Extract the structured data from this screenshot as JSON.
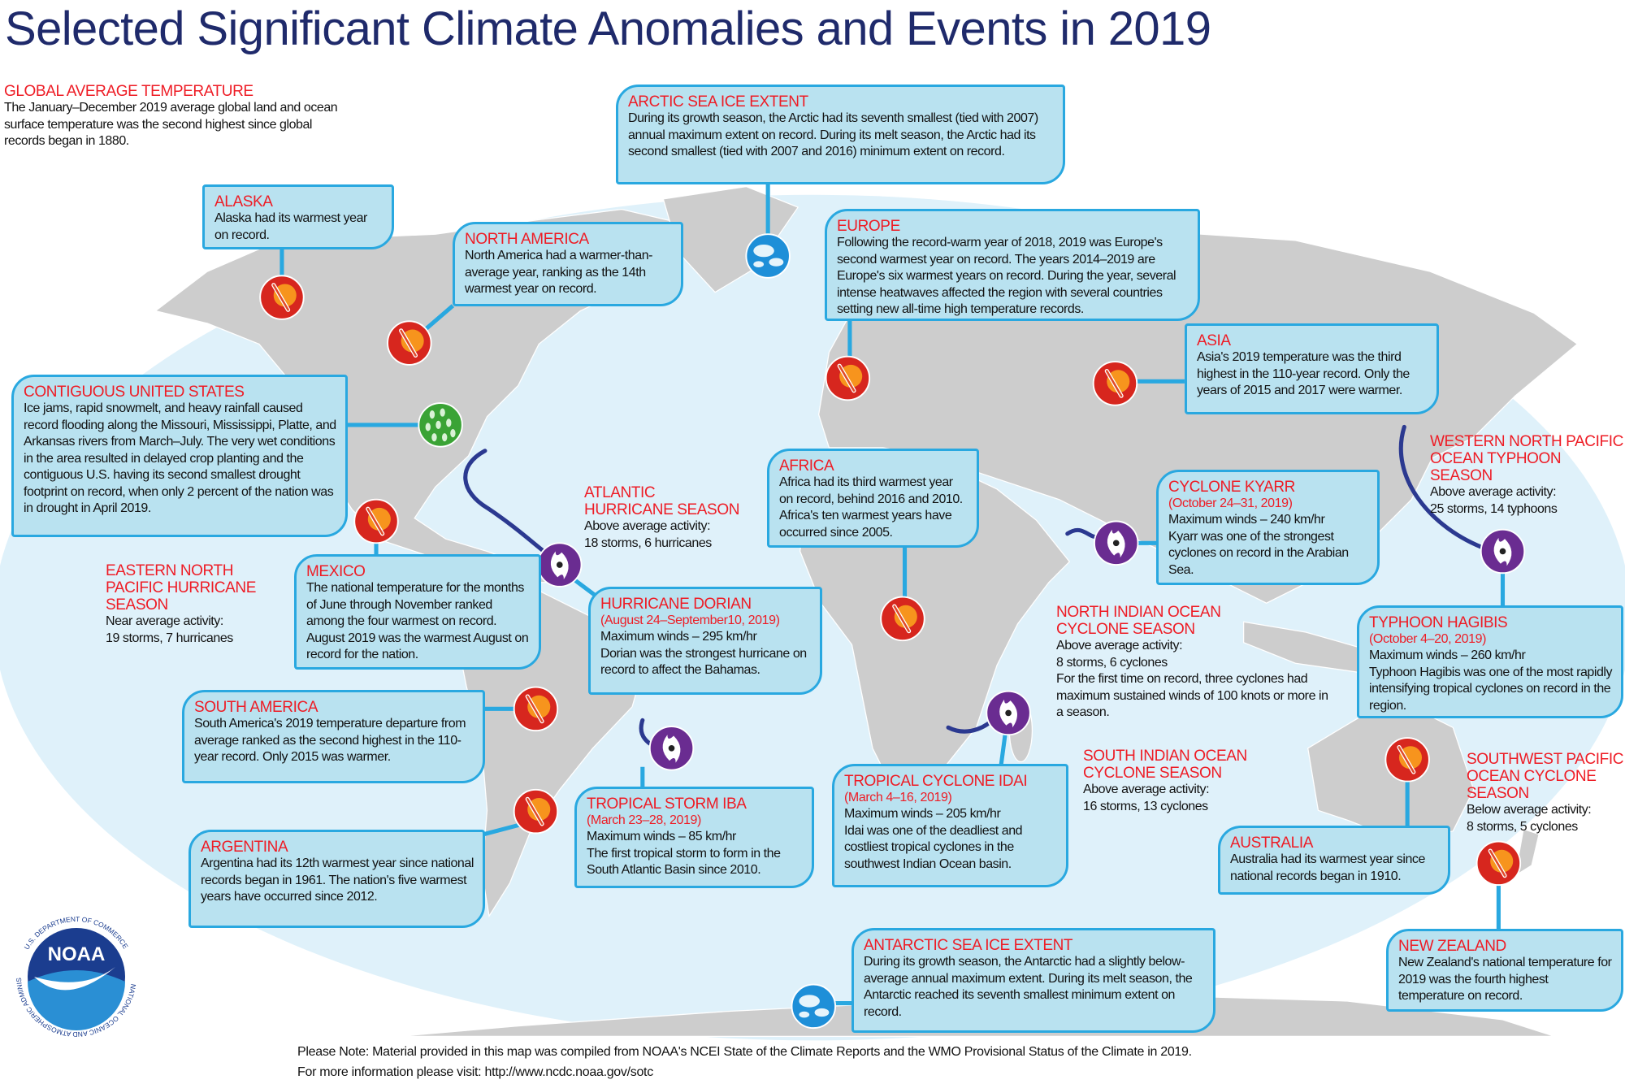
{
  "title": "Selected Significant Climate Anomalies and Events in 2019",
  "colors": {
    "heading": "#ee1c25",
    "box_fill": "#b9e2f0",
    "box_border": "#29a8e0",
    "ocean": "#dff1fa",
    "land": "#cdcdcd",
    "temperature_marker": "#d7261e",
    "precipitation_marker": "#3aa335",
    "storm_marker": "#6a2c91",
    "storm_track": "#2b3990",
    "title": "#1f2a6b"
  },
  "global": {
    "heading": "GLOBAL AVERAGE TEMPERATURE",
    "text": "The January–December 2019 average global land and ocean surface temperature was the second highest since global records began in 1880."
  },
  "arctic": {
    "heading": "ARCTIC SEA ICE EXTENT",
    "text": "During its growth season, the Arctic had its seventh smallest (tied with 2007) annual maximum extent on record. During its melt season, the Arctic had its second smallest (tied with 2007 and 2016) minimum extent on record."
  },
  "alaska": {
    "heading": "ALASKA",
    "text": "Alaska had its warmest year on record."
  },
  "north_america": {
    "heading": "NORTH AMERICA",
    "text": "North America had a warmer-than-average year, ranking as the 14th warmest year on record."
  },
  "europe": {
    "heading": "EUROPE",
    "text": "Following the record-warm year of 2018, 2019 was Europe's second warmest year on record.  The years 2014–2019 are Europe's six warmest years on record. During the year, several intense heatwaves affected the region with several countries setting new all-time high temperature records."
  },
  "asia": {
    "heading": "ASIA",
    "text": "Asia's 2019 temperature was the third highest in the 110-year record. Only the years of 2015 and 2017 were warmer."
  },
  "contiguous_us": {
    "heading": "CONTIGUOUS UNITED STATES",
    "text": "Ice jams, rapid snowmelt, and heavy rainfall caused record flooding along the Missouri, Mississippi, Platte, and Arkansas rivers from March–July. The very wet conditions in the area resulted in delayed crop planting and the contiguous U.S. having its second smallest drought footprint on record, when only 2 percent of the nation was in drought in April 2019."
  },
  "western_north_pacific": {
    "heading": "WESTERN NORTH PACIFIC OCEAN TYPHOON SEASON",
    "text": "Above average activity:",
    "text2": "25 storms, 14 typhoons"
  },
  "atlantic": {
    "heading": "ATLANTIC HURRICANE SEASON",
    "text": "Above average activity:",
    "text2": "18 storms, 6 hurricanes"
  },
  "africa": {
    "heading": "AFRICA",
    "text": "Africa had its third warmest year on record, behind 2016 and 2010. Africa's ten warmest years have occurred since 2005."
  },
  "kyarr": {
    "heading": "CYCLONE KYARR",
    "dates": "(October 24–31, 2019)",
    "winds": "Maximum winds – 240 km/hr",
    "text": "Kyarr was one of the strongest cyclones on record in the Arabian Sea."
  },
  "eastern_north_pacific": {
    "heading": "EASTERN NORTH PACIFIC HURRICANE SEASON",
    "text": "Near average activity:",
    "text2": "19 storms, 7 hurricanes"
  },
  "mexico": {
    "heading": "MEXICO",
    "text": "The national temperature for the months of June through November ranked among the four warmest on record. August 2019 was the warmest August on record for the nation."
  },
  "dorian": {
    "heading": "HURRICANE DORIAN",
    "dates": "(August 24–September10, 2019)",
    "winds": "Maximum winds – 295 km/hr",
    "text": "Dorian was the strongest hurricane on record to affect the Bahamas."
  },
  "north_indian": {
    "heading": "NORTH INDIAN OCEAN CYCLONE SEASON",
    "text": "Above average activity:",
    "text2": "8 storms, 6 cyclones",
    "text3": "For the first time on record, three cyclones had maximum sustained winds of 100 knots or more in a season."
  },
  "hagibis": {
    "heading": "TYPHOON HAGIBIS",
    "dates": "(October 4–20, 2019)",
    "winds": "Maximum winds – 260 km/hr",
    "text": "Typhoon Hagibis was one of the most rapidly intensifying tropical cyclones on record in the region."
  },
  "south_america": {
    "heading": "SOUTH AMERICA",
    "text": "South America's 2019 temperature departure from average ranked as the second highest in the 110-year record. Only 2015 was warmer."
  },
  "iba": {
    "heading": "TROPICAL STORM IBA",
    "dates": "(March 23–28, 2019)",
    "winds": "Maximum winds – 85 km/hr",
    "text": "The first tropical storm to form in the South Atlantic Basin since 2010."
  },
  "idai": {
    "heading": "TROPICAL CYCLONE IDAI",
    "dates": "(March 4–16, 2019)",
    "winds": "Maximum winds – 205 km/hr",
    "text": "Idai was one of the deadliest and costliest tropical cyclones in the southwest Indian Ocean basin."
  },
  "south_indian": {
    "heading": "SOUTH INDIAN OCEAN CYCLONE SEASON",
    "text": "Above average activity:",
    "text2": "16 storms, 13 cyclones"
  },
  "southwest_pacific": {
    "heading": "SOUTHWEST PACIFIC OCEAN CYCLONE SEASON",
    "text": "Below average activity:",
    "text2": "8 storms, 5 cyclones"
  },
  "argentina": {
    "heading": "ARGENTINA",
    "text": "Argentina had its 12th warmest year since national records began in 1961.  The nation's five warmest years have occurred since 2012."
  },
  "australia": {
    "heading": "AUSTRALIA",
    "text": "Australia had its warmest year since national records began in 1910."
  },
  "new_zealand": {
    "heading": "NEW ZEALAND",
    "text": "New Zealand's national temperature for 2019 was the fourth highest temperature on record."
  },
  "antarctic": {
    "heading": "ANTARCTIC SEA ICE EXTENT",
    "text": "During its growth season, the Antarctic had a slightly below-average annual maximum extent. During its melt season, the Antarctic reached its seventh smallest minimum extent on record."
  },
  "footnote": {
    "line1": "Please Note: Material provided in this map was compiled from NOAA's NCEI State of the Climate Reports and the WMO Provisional Status of the Climate in 2019.",
    "line2": "For more information please visit: http://www.ncdc.noaa.gov/sotc"
  },
  "logo": {
    "wordmark": "NOAA",
    "ring_text": "NATIONAL OCEANIC AND ATMOSPHERIC ADMINISTRATION",
    "ring_text_bottom": "U.S. DEPARTMENT OF COMMERCE"
  },
  "legend_icons": {
    "temperature": "thermometer-sun-icon",
    "precipitation": "raindrops-icon",
    "storm": "cyclone-icon",
    "sea_ice": "sea-ice-icon"
  }
}
